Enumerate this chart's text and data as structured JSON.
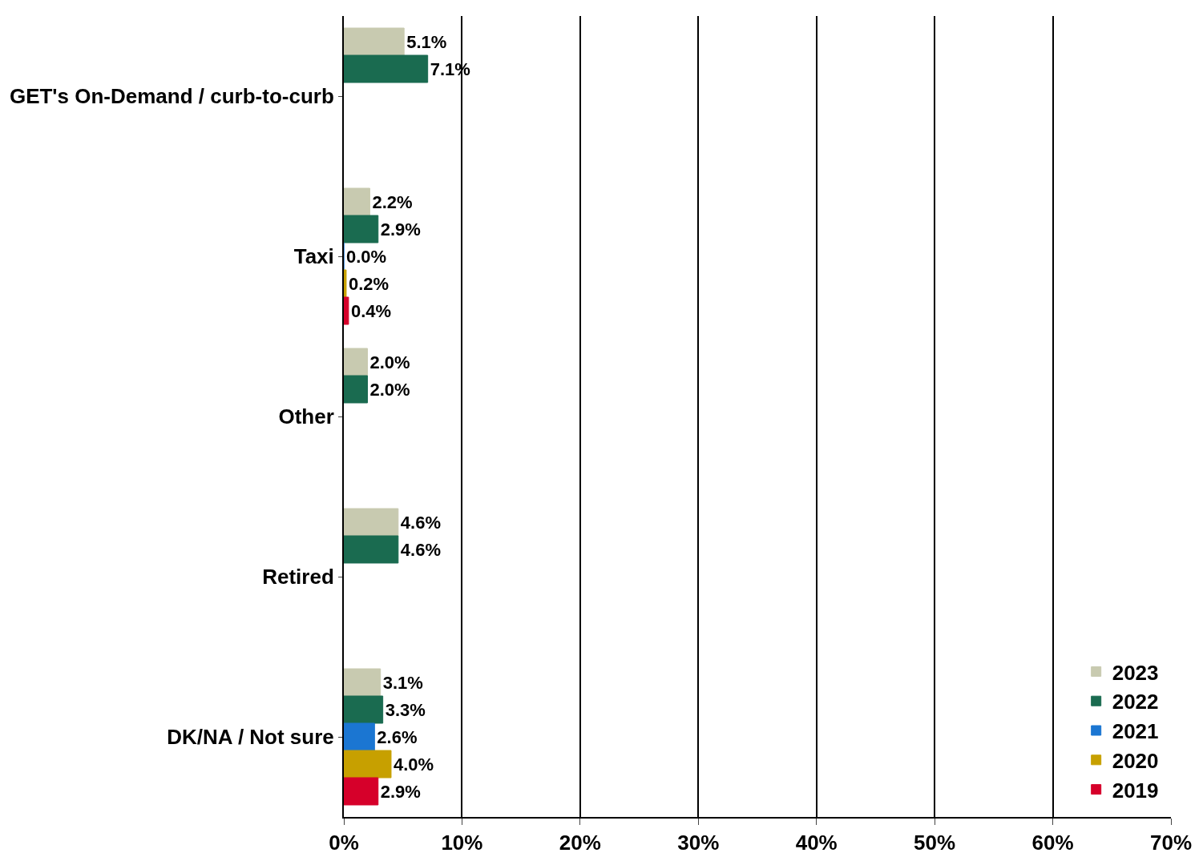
{
  "chart_data": {
    "type": "bar",
    "orientation": "horizontal",
    "categories": [
      "GET's On-Demand / curb-to-curb",
      "Taxi",
      "Other",
      "Retired",
      "DK/NA / Not sure"
    ],
    "series": [
      {
        "name": "2023",
        "color": "#c8cab0",
        "values": [
          5.1,
          2.2,
          2.0,
          4.6,
          3.1
        ],
        "value_labels": [
          "5.1%",
          "2.2%",
          "2.0%",
          "4.6%",
          "3.1%"
        ]
      },
      {
        "name": "2022",
        "color": "#1a6b50",
        "values": [
          7.1,
          2.9,
          2.0,
          4.6,
          3.3
        ],
        "value_labels": [
          "7.1%",
          "2.9%",
          "2.0%",
          "4.6%",
          "3.3%"
        ]
      },
      {
        "name": "2021",
        "color": "#1b76d2",
        "values": [
          null,
          0.0,
          null,
          null,
          2.6
        ],
        "value_labels": [
          null,
          "0.0%",
          null,
          null,
          "2.6%"
        ]
      },
      {
        "name": "2020",
        "color": "#c7a000",
        "values": [
          null,
          0.2,
          null,
          null,
          4.0
        ],
        "value_labels": [
          null,
          "0.2%",
          null,
          null,
          "4.0%"
        ]
      },
      {
        "name": "2019",
        "color": "#d6002a",
        "values": [
          null,
          0.4,
          null,
          null,
          2.9
        ],
        "value_labels": [
          null,
          "0.4%",
          null,
          null,
          "2.9%"
        ]
      }
    ],
    "xlim": [
      0,
      70
    ],
    "xticks": [
      {
        "value": 0,
        "label": "0%"
      },
      {
        "value": 10,
        "label": "10%"
      },
      {
        "value": 20,
        "label": "20%"
      },
      {
        "value": 30,
        "label": "30%"
      },
      {
        "value": 40,
        "label": "40%"
      },
      {
        "value": 50,
        "label": "50%"
      },
      {
        "value": 60,
        "label": "60%"
      },
      {
        "value": 70,
        "label": "70%"
      }
    ],
    "grid": "x",
    "legend": "bottom right"
  }
}
